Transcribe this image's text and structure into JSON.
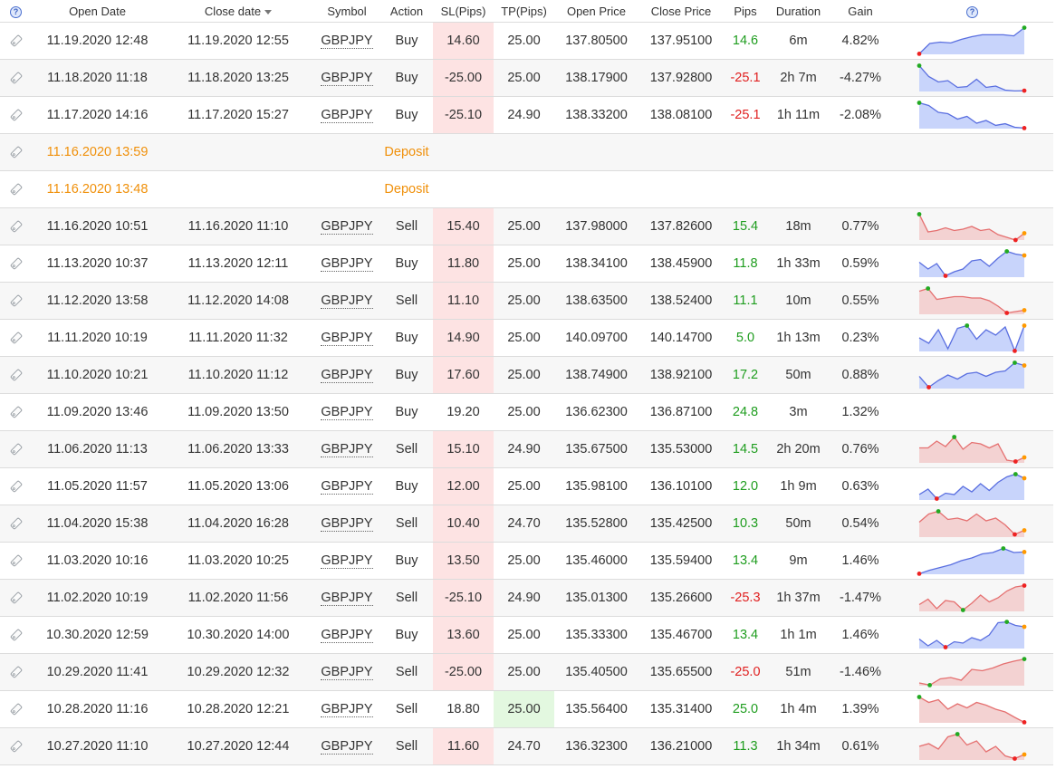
{
  "headers": {
    "open_date": "Open Date",
    "close_date": "Close date",
    "symbol": "Symbol",
    "action": "Action",
    "sl": "SL(Pips)",
    "tp": "TP(Pips)",
    "open_price": "Open Price",
    "close_price": "Close Price",
    "pips": "Pips",
    "duration": "Duration",
    "gain": "Gain",
    "help_glyph": "?"
  },
  "colors": {
    "buy_fill": "#c8d4fb",
    "buy_line": "#5a6fe0",
    "sell_fill": "#f3d2d2",
    "sell_line": "#e57070",
    "sl_highlight": "#fde3e3",
    "tp_highlight": "#e3f8e0",
    "positive": "#1f9d1f",
    "negative": "#e02020",
    "deposit": "#f0900a",
    "marker_green": "#22aa22",
    "marker_red": "#ee2222",
    "marker_orange": "#ff9900"
  },
  "rows": [
    {
      "type": "trade",
      "open": "11.19.2020 12:48",
      "close": "11.19.2020 12:55",
      "symbol": "GBPJPY",
      "action": "Buy",
      "sl": "14.60",
      "sl_hl": true,
      "tp": "25.00",
      "tp_hl": false,
      "open_price": "137.80500",
      "close_price": "137.95100",
      "pips": "14.6",
      "pips_sign": "pos",
      "duration": "6m",
      "gain": "4.82%",
      "spark": {
        "points": [
          0.02,
          0.4,
          0.45,
          0.42,
          0.55,
          0.65,
          0.72,
          0.72,
          0.72,
          0.68,
          0.98
        ],
        "markers": [
          {
            "i": 10,
            "c": "green"
          },
          {
            "i": 0,
            "c": "red"
          }
        ]
      }
    },
    {
      "type": "trade",
      "open": "11.18.2020 11:18",
      "close": "11.18.2020 13:25",
      "symbol": "GBPJPY",
      "action": "Buy",
      "sl": "-25.00",
      "sl_hl": true,
      "tp": "25.00",
      "tp_hl": false,
      "open_price": "138.17900",
      "close_price": "137.92800",
      "pips": "-25.1",
      "pips_sign": "neg",
      "duration": "2h 7m",
      "gain": "-4.27%",
      "spark": {
        "points": [
          0.95,
          0.55,
          0.35,
          0.4,
          0.15,
          0.18,
          0.45,
          0.15,
          0.2,
          0.05,
          0.02,
          0.03
        ],
        "markers": [
          {
            "i": 0,
            "c": "green"
          },
          {
            "i": 11,
            "c": "red"
          }
        ]
      }
    },
    {
      "type": "trade",
      "open": "11.17.2020 14:16",
      "close": "11.17.2020 15:27",
      "symbol": "GBPJPY",
      "action": "Buy",
      "sl": "-25.10",
      "sl_hl": true,
      "tp": "24.90",
      "tp_hl": false,
      "open_price": "138.33200",
      "close_price": "138.08100",
      "pips": "-25.1",
      "pips_sign": "neg",
      "duration": "1h 11m",
      "gain": "-2.08%",
      "spark": {
        "points": [
          0.95,
          0.85,
          0.6,
          0.55,
          0.35,
          0.45,
          0.2,
          0.3,
          0.12,
          0.18,
          0.05,
          0.02
        ],
        "markers": [
          {
            "i": 0,
            "c": "green"
          },
          {
            "i": 11,
            "c": "red"
          }
        ]
      }
    },
    {
      "type": "deposit",
      "open": "11.16.2020 13:59",
      "action": "Deposit"
    },
    {
      "type": "deposit",
      "open": "11.16.2020 13:48",
      "action": "Deposit"
    },
    {
      "type": "trade",
      "open": "11.16.2020 10:51",
      "close": "11.16.2020 11:10",
      "symbol": "GBPJPY",
      "action": "Sell",
      "sl": "15.40",
      "sl_hl": true,
      "tp": "25.00",
      "tp_hl": false,
      "open_price": "137.98000",
      "close_price": "137.82600",
      "pips": "15.4",
      "pips_sign": "pos",
      "duration": "18m",
      "gain": "0.77%",
      "spark": {
        "points": [
          0.95,
          0.3,
          0.35,
          0.45,
          0.35,
          0.4,
          0.5,
          0.35,
          0.4,
          0.2,
          0.1,
          0.0,
          0.25
        ],
        "markers": [
          {
            "i": 0,
            "c": "green"
          },
          {
            "i": 11,
            "c": "red"
          },
          {
            "i": 12,
            "c": "orange"
          }
        ]
      }
    },
    {
      "type": "trade",
      "open": "11.13.2020 10:37",
      "close": "11.13.2020 12:11",
      "symbol": "GBPJPY",
      "action": "Buy",
      "sl": "11.80",
      "sl_hl": true,
      "tp": "25.00",
      "tp_hl": false,
      "open_price": "138.34100",
      "close_price": "138.45900",
      "pips": "11.8",
      "pips_sign": "pos",
      "duration": "1h 33m",
      "gain": "0.59%",
      "spark": {
        "points": [
          0.55,
          0.3,
          0.5,
          0.05,
          0.2,
          0.3,
          0.6,
          0.65,
          0.4,
          0.7,
          0.95,
          0.85,
          0.8
        ],
        "markers": [
          {
            "i": 3,
            "c": "red"
          },
          {
            "i": 10,
            "c": "green"
          },
          {
            "i": 12,
            "c": "orange"
          }
        ]
      }
    },
    {
      "type": "trade",
      "open": "11.12.2020 13:58",
      "close": "11.12.2020 14:08",
      "symbol": "GBPJPY",
      "action": "Sell",
      "sl": "11.10",
      "sl_hl": true,
      "tp": "25.00",
      "tp_hl": false,
      "open_price": "138.63500",
      "close_price": "138.52400",
      "pips": "11.1",
      "pips_sign": "pos",
      "duration": "10m",
      "gain": "0.55%",
      "spark": {
        "points": [
          0.85,
          0.95,
          0.55,
          0.6,
          0.65,
          0.65,
          0.6,
          0.6,
          0.5,
          0.3,
          0.05,
          0.1,
          0.15
        ],
        "markers": [
          {
            "i": 1,
            "c": "green"
          },
          {
            "i": 10,
            "c": "red"
          },
          {
            "i": 12,
            "c": "orange"
          }
        ]
      }
    },
    {
      "type": "trade",
      "open": "11.11.2020 10:19",
      "close": "11.11.2020 11:32",
      "symbol": "GBPJPY",
      "action": "Buy",
      "sl": "14.90",
      "sl_hl": true,
      "tp": "25.00",
      "tp_hl": false,
      "open_price": "140.09700",
      "close_price": "140.14700",
      "pips": "5.0",
      "pips_sign": "pos",
      "duration": "1h 13m",
      "gain": "0.23%",
      "spark": {
        "points": [
          0.5,
          0.3,
          0.8,
          0.1,
          0.85,
          0.95,
          0.45,
          0.8,
          0.6,
          0.9,
          0.02,
          0.95
        ],
        "markers": [
          {
            "i": 5,
            "c": "green"
          },
          {
            "i": 10,
            "c": "red"
          },
          {
            "i": 11,
            "c": "orange"
          }
        ]
      }
    },
    {
      "type": "trade",
      "open": "11.10.2020 10:21",
      "close": "11.10.2020 11:12",
      "symbol": "GBPJPY",
      "action": "Buy",
      "sl": "17.60",
      "sl_hl": true,
      "tp": "25.00",
      "tp_hl": false,
      "open_price": "138.74900",
      "close_price": "138.92100",
      "pips": "17.2",
      "pips_sign": "pos",
      "duration": "50m",
      "gain": "0.88%",
      "spark": {
        "points": [
          0.45,
          0.05,
          0.3,
          0.5,
          0.35,
          0.55,
          0.6,
          0.45,
          0.6,
          0.65,
          0.95,
          0.85
        ],
        "markers": [
          {
            "i": 1,
            "c": "red"
          },
          {
            "i": 10,
            "c": "green"
          },
          {
            "i": 11,
            "c": "orange"
          }
        ]
      }
    },
    {
      "type": "trade",
      "open": "11.09.2020 13:46",
      "close": "11.09.2020 13:50",
      "symbol": "GBPJPY",
      "action": "Buy",
      "sl": "19.20",
      "sl_hl": false,
      "tp": "25.00",
      "tp_hl": false,
      "open_price": "136.62300",
      "close_price": "136.87100",
      "pips": "24.8",
      "pips_sign": "pos",
      "duration": "3m",
      "gain": "1.32%",
      "spark": null
    },
    {
      "type": "trade",
      "open": "11.06.2020 11:13",
      "close": "11.06.2020 13:33",
      "symbol": "GBPJPY",
      "action": "Sell",
      "sl": "15.10",
      "sl_hl": true,
      "tp": "24.90",
      "tp_hl": false,
      "open_price": "135.67500",
      "close_price": "135.53000",
      "pips": "14.5",
      "pips_sign": "pos",
      "duration": "2h 20m",
      "gain": "0.76%",
      "spark": {
        "points": [
          0.55,
          0.55,
          0.8,
          0.6,
          0.95,
          0.5,
          0.75,
          0.7,
          0.55,
          0.7,
          0.1,
          0.05,
          0.2
        ],
        "markers": [
          {
            "i": 4,
            "c": "green"
          },
          {
            "i": 11,
            "c": "red"
          },
          {
            "i": 12,
            "c": "orange"
          }
        ]
      }
    },
    {
      "type": "trade",
      "open": "11.05.2020 11:57",
      "close": "11.05.2020 13:06",
      "symbol": "GBPJPY",
      "action": "Buy",
      "sl": "12.00",
      "sl_hl": true,
      "tp": "25.00",
      "tp_hl": false,
      "open_price": "135.98100",
      "close_price": "136.10100",
      "pips": "12.0",
      "pips_sign": "pos",
      "duration": "1h 9m",
      "gain": "0.63%",
      "spark": {
        "points": [
          0.2,
          0.4,
          0.05,
          0.25,
          0.2,
          0.5,
          0.3,
          0.6,
          0.35,
          0.65,
          0.85,
          0.95,
          0.8
        ],
        "markers": [
          {
            "i": 2,
            "c": "red"
          },
          {
            "i": 11,
            "c": "green"
          },
          {
            "i": 12,
            "c": "orange"
          }
        ]
      }
    },
    {
      "type": "trade",
      "open": "11.04.2020 15:38",
      "close": "11.04.2020 16:28",
      "symbol": "GBPJPY",
      "action": "Sell",
      "sl": "10.40",
      "sl_hl": true,
      "tp": "24.70",
      "tp_hl": false,
      "open_price": "135.52800",
      "close_price": "135.42500",
      "pips": "10.3",
      "pips_sign": "pos",
      "duration": "50m",
      "gain": "0.54%",
      "spark": {
        "points": [
          0.55,
          0.85,
          0.95,
          0.65,
          0.7,
          0.6,
          0.85,
          0.6,
          0.7,
          0.45,
          0.1,
          0.25
        ],
        "markers": [
          {
            "i": 2,
            "c": "green"
          },
          {
            "i": 10,
            "c": "red"
          },
          {
            "i": 11,
            "c": "orange"
          }
        ]
      }
    },
    {
      "type": "trade",
      "open": "11.03.2020 10:16",
      "close": "11.03.2020 10:25",
      "symbol": "GBPJPY",
      "action": "Buy",
      "sl": "13.50",
      "sl_hl": true,
      "tp": "25.00",
      "tp_hl": false,
      "open_price": "135.46000",
      "close_price": "135.59400",
      "pips": "13.4",
      "pips_sign": "pos",
      "duration": "9m",
      "gain": "1.46%",
      "spark": {
        "points": [
          0.02,
          0.15,
          0.25,
          0.35,
          0.5,
          0.6,
          0.75,
          0.8,
          0.95,
          0.8,
          0.82
        ],
        "markers": [
          {
            "i": 0,
            "c": "red"
          },
          {
            "i": 8,
            "c": "green"
          },
          {
            "i": 10,
            "c": "orange"
          }
        ]
      }
    },
    {
      "type": "trade",
      "open": "11.02.2020 10:19",
      "close": "11.02.2020 11:56",
      "symbol": "GBPJPY",
      "action": "Sell",
      "sl": "-25.10",
      "sl_hl": true,
      "tp": "24.90",
      "tp_hl": false,
      "open_price": "135.01300",
      "close_price": "135.26600",
      "pips": "-25.3",
      "pips_sign": "neg",
      "duration": "1h 37m",
      "gain": "-1.47%",
      "spark": {
        "points": [
          0.25,
          0.45,
          0.1,
          0.4,
          0.35,
          0.05,
          0.3,
          0.6,
          0.35,
          0.5,
          0.75,
          0.9,
          0.95
        ],
        "markers": [
          {
            "i": 5,
            "c": "green"
          },
          {
            "i": 12,
            "c": "red"
          }
        ]
      }
    },
    {
      "type": "trade",
      "open": "10.30.2020 12:59",
      "close": "10.30.2020 14:00",
      "symbol": "GBPJPY",
      "action": "Buy",
      "sl": "13.60",
      "sl_hl": true,
      "tp": "25.00",
      "tp_hl": false,
      "open_price": "135.33300",
      "close_price": "135.46700",
      "pips": "13.4",
      "pips_sign": "pos",
      "duration": "1h 1m",
      "gain": "1.46%",
      "spark": {
        "points": [
          0.35,
          0.1,
          0.3,
          0.05,
          0.25,
          0.2,
          0.4,
          0.3,
          0.5,
          0.95,
          0.98,
          0.85,
          0.8
        ],
        "markers": [
          {
            "i": 3,
            "c": "red"
          },
          {
            "i": 10,
            "c": "green"
          },
          {
            "i": 12,
            "c": "orange"
          }
        ]
      }
    },
    {
      "type": "trade",
      "open": "10.29.2020 11:41",
      "close": "10.29.2020 12:32",
      "symbol": "GBPJPY",
      "action": "Sell",
      "sl": "-25.00",
      "sl_hl": true,
      "tp": "25.00",
      "tp_hl": false,
      "open_price": "135.40500",
      "close_price": "135.65500",
      "pips": "-25.0",
      "pips_sign": "neg",
      "duration": "51m",
      "gain": "-1.46%",
      "spark": {
        "points": [
          0.1,
          0.02,
          0.25,
          0.3,
          0.2,
          0.6,
          0.55,
          0.65,
          0.8,
          0.9,
          0.98
        ],
        "markers": [
          {
            "i": 1,
            "c": "green"
          },
          {
            "i": 10,
            "c": "green"
          }
        ]
      }
    },
    {
      "type": "trade",
      "open": "10.28.2020 11:16",
      "close": "10.28.2020 12:21",
      "symbol": "GBPJPY",
      "action": "Sell",
      "sl": "18.80",
      "sl_hl": false,
      "tp": "25.00",
      "tp_hl": true,
      "open_price": "135.56400",
      "close_price": "135.31400",
      "pips": "25.0",
      "pips_sign": "pos",
      "duration": "1h 4m",
      "gain": "1.39%",
      "spark": {
        "points": [
          0.95,
          0.75,
          0.85,
          0.5,
          0.7,
          0.55,
          0.75,
          0.65,
          0.5,
          0.4,
          0.2,
          0.02
        ],
        "markers": [
          {
            "i": 0,
            "c": "green"
          },
          {
            "i": 11,
            "c": "red"
          }
        ]
      }
    },
    {
      "type": "trade",
      "open": "10.27.2020 11:10",
      "close": "10.27.2020 12:44",
      "symbol": "GBPJPY",
      "action": "Sell",
      "sl": "11.60",
      "sl_hl": true,
      "tp": "24.70",
      "tp_hl": false,
      "open_price": "136.32300",
      "close_price": "136.21000",
      "pips": "11.3",
      "pips_sign": "pos",
      "duration": "1h 34m",
      "gain": "0.61%",
      "spark": {
        "points": [
          0.5,
          0.6,
          0.4,
          0.85,
          0.95,
          0.55,
          0.7,
          0.3,
          0.5,
          0.15,
          0.05,
          0.2
        ],
        "markers": [
          {
            "i": 4,
            "c": "green"
          },
          {
            "i": 10,
            "c": "red"
          },
          {
            "i": 11,
            "c": "orange"
          }
        ]
      }
    }
  ]
}
